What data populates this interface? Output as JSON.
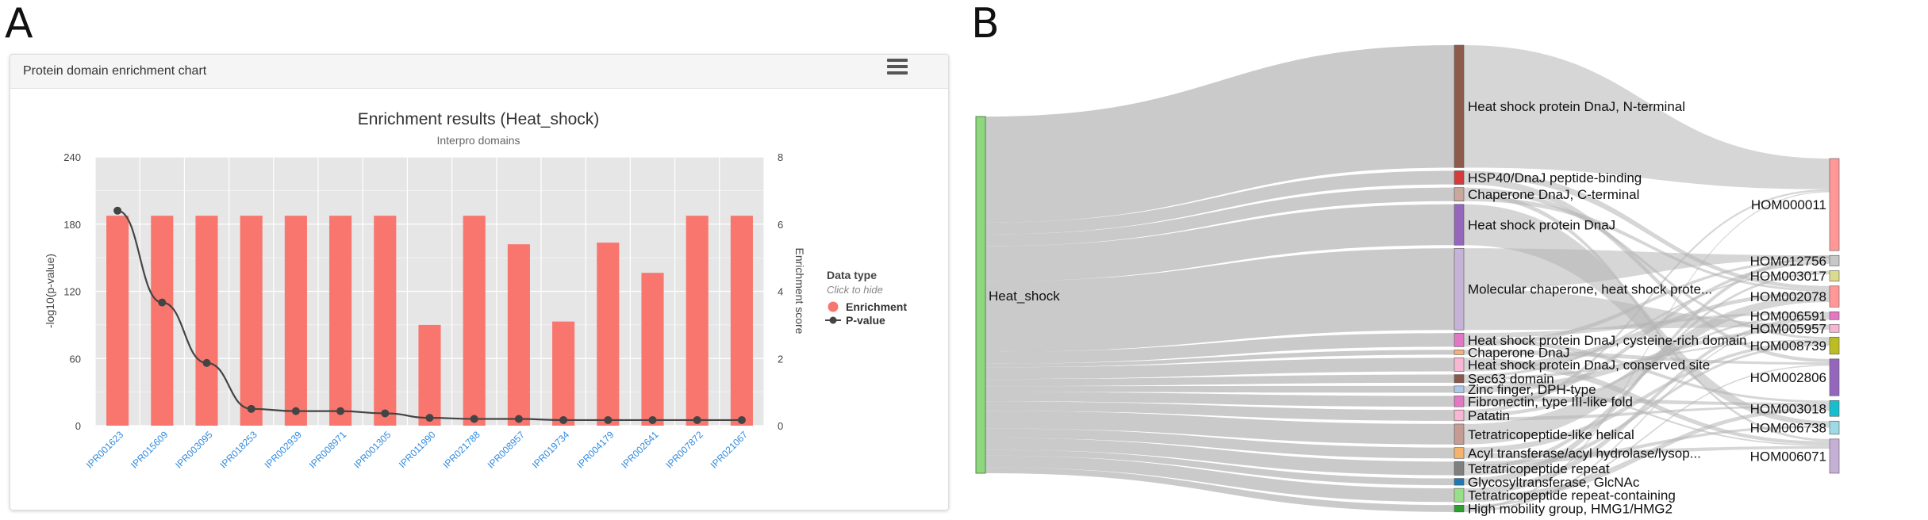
{
  "panels": {
    "a": "A",
    "b": "B"
  },
  "card": {
    "header": "Protein domain enrichment chart"
  },
  "chart_data": [
    {
      "type": "bar",
      "title": "Enrichment results (Heat_shock)",
      "subtitle": "Interpro domains",
      "xlabel": "",
      "ylabel_left": "-log10(p-value)",
      "ylabel_right": "Enrichment score",
      "ylim_left": [
        0,
        240
      ],
      "ylim_right": [
        0,
        8
      ],
      "yticks_left": [
        "0",
        "60",
        "120",
        "180",
        "240"
      ],
      "yticks_right": [
        "0",
        "2",
        "4",
        "6",
        "8"
      ],
      "grid": true,
      "legend": {
        "title": "Data type",
        "hint": "Click to hide",
        "placement": "right"
      },
      "categories": [
        "IPR001623",
        "IPR015609",
        "IPR003095",
        "IPR018253",
        "IPR002939",
        "IPR008971",
        "IPR001305",
        "IPR011990",
        "IPR021788",
        "IPR008957",
        "IPR019734",
        "IPR004179",
        "IPR002641",
        "IPR007872",
        "IPR021067"
      ],
      "series": [
        {
          "name": "Enrichment",
          "kind": "bar",
          "axis": "right",
          "color": "#f8766d",
          "values": [
            6.25,
            6.25,
            6.25,
            6.25,
            6.25,
            6.25,
            6.25,
            3.0,
            6.25,
            5.4,
            3.1,
            5.45,
            4.55,
            6.25,
            6.25
          ]
        },
        {
          "name": "P-value",
          "kind": "line",
          "axis": "left",
          "color": "#444444",
          "values": [
            192,
            110,
            56,
            15,
            13,
            13,
            11,
            7,
            6,
            6,
            5,
            5,
            5,
            5,
            5
          ]
        }
      ]
    },
    {
      "type": "sankey",
      "source": {
        "label": "Heat_shock",
        "color": "#8fd67f"
      },
      "domains": [
        {
          "label": "Heat shock protein DnaJ, N-terminal",
          "color": "#8c5b4b",
          "size": 9
        },
        {
          "label": "HSP40/DnaJ peptide-binding",
          "color": "#d63b3b",
          "size": 1
        },
        {
          "label": "Chaperone DnaJ, C-terminal",
          "color": "#c9a79c",
          "size": 1
        },
        {
          "label": "Heat shock protein DnaJ",
          "color": "#9467bd",
          "size": 3
        },
        {
          "label": "Molecular chaperone, heat shock prote...",
          "color": "#c6b3d8",
          "size": 6
        },
        {
          "label": "Heat shock protein DnaJ, cysteine-rich domain",
          "color": "#e178c5",
          "size": 1
        },
        {
          "label": "Chaperone DnaJ",
          "color": "#f0b27a",
          "size": 0.3
        },
        {
          "label": "Heat shock protein DnaJ, conserved site",
          "color": "#f7b6d2",
          "size": 1
        },
        {
          "label": "Sec63 domain",
          "color": "#8c564b",
          "size": 0.6
        },
        {
          "label": "Zinc finger, DPH-type",
          "color": "#aec7e8",
          "size": 0.5
        },
        {
          "label": "Fibronectin, type III-like fold",
          "color": "#e377c2",
          "size": 0.8
        },
        {
          "label": "Patatin",
          "color": "#f7b6d2",
          "size": 0.8
        },
        {
          "label": "Tetratricopeptide-like helical",
          "color": "#c49c94",
          "size": 1.5
        },
        {
          "label": "Acyl transferase/acyl hydrolase/lysop...",
          "color": "#f6b26b",
          "size": 0.8
        },
        {
          "label": "Tetratricopeptide repeat",
          "color": "#7f7f7f",
          "size": 1
        },
        {
          "label": "Glycosyltransferase, GlcNAc",
          "color": "#1f77b4",
          "size": 0.5
        },
        {
          "label": "Tetratricopeptide repeat-containing",
          "color": "#98df8a",
          "size": 1
        },
        {
          "label": "High mobility group, HMG1/HMG2",
          "color": "#2ca02c",
          "size": 0.5
        }
      ],
      "targets": [
        {
          "label": "HOM000011",
          "color": "#ff9896",
          "size": 7
        },
        {
          "label": "HOM012756",
          "color": "#c7c7c7",
          "size": 0.8
        },
        {
          "label": "HOM003017",
          "color": "#dbdb8d",
          "size": 0.8
        },
        {
          "label": "HOM002078",
          "color": "#ff9896",
          "size": 1.6
        },
        {
          "label": "HOM006591",
          "color": "#e377c2",
          "size": 0.6
        },
        {
          "label": "HOM005957",
          "color": "#f7b6d2",
          "size": 0.6
        },
        {
          "label": "HOM008739",
          "color": "#bcbd22",
          "size": 1.3
        },
        {
          "label": "HOM002806",
          "color": "#9467bd",
          "size": 2.8
        },
        {
          "label": "HOM003018",
          "color": "#17becf",
          "size": 1.2
        },
        {
          "label": "HOM006738",
          "color": "#9edae5",
          "size": 1
        },
        {
          "label": "HOM006071",
          "color": "#c5b0d5",
          "size": 2.6
        }
      ]
    }
  ]
}
